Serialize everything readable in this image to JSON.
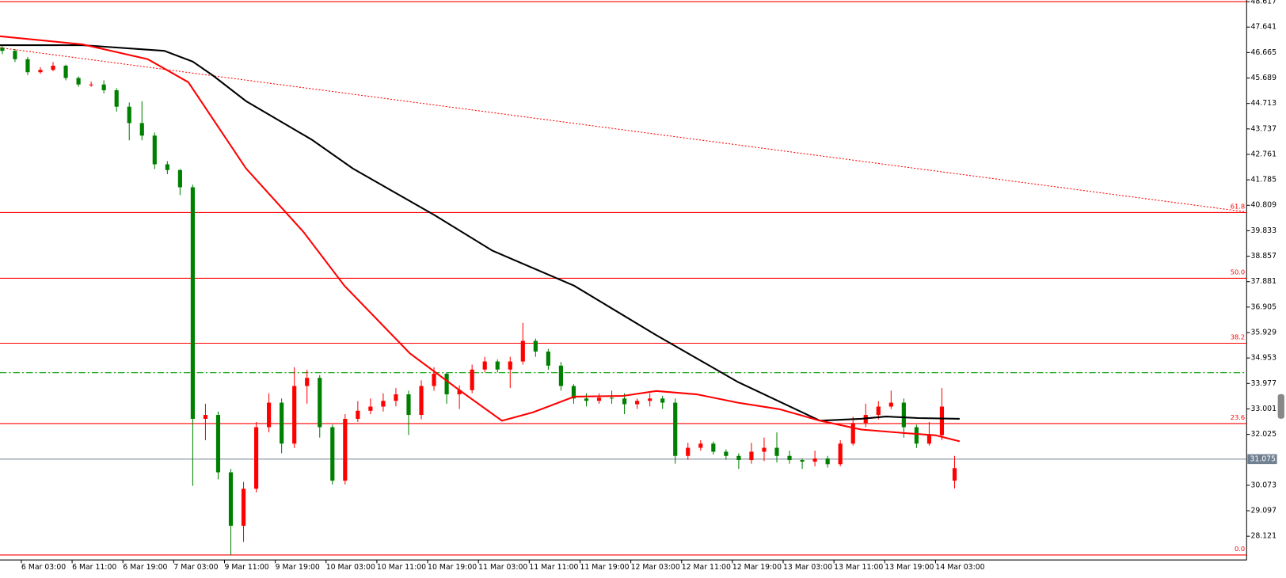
{
  "chart_data": {
    "type": "candlestick",
    "up_color": "#ff0000",
    "down_color": "#008000",
    "xlim": [
      2.64,
      199
    ],
    "ylim": [
      27.21,
      48.68
    ],
    "xticks": [
      {
        "value": 6,
        "label": "6 Mar 03:00"
      },
      {
        "value": 14,
        "label": "6 Mar 11:00"
      },
      {
        "value": 22,
        "label": "6 Mar 19:00"
      },
      {
        "value": 30,
        "label": "7 Mar 03:00"
      },
      {
        "value": 38,
        "label": "9 Mar 11:00"
      },
      {
        "value": 46,
        "label": "9 Mar 19:00"
      },
      {
        "value": 54,
        "label": "10 Mar 03:00"
      },
      {
        "value": 62,
        "label": "10 Mar 11:00"
      },
      {
        "value": 70,
        "label": "10 Mar 19:00"
      },
      {
        "value": 78,
        "label": "11 Mar 03:00"
      },
      {
        "value": 86,
        "label": "11 Mar 11:00"
      },
      {
        "value": 94,
        "label": "11 Mar 19:00"
      },
      {
        "value": 102,
        "label": "12 Mar 03:00"
      },
      {
        "value": 110,
        "label": "12 Mar 11:00"
      },
      {
        "value": 118,
        "label": "12 Mar 19:00"
      },
      {
        "value": 126,
        "label": "13 Mar 03:00"
      },
      {
        "value": 134,
        "label": "13 Mar 11:00"
      },
      {
        "value": 142,
        "label": "13 Mar 19:00"
      },
      {
        "value": 150,
        "label": "14 Mar 03:00"
      }
    ],
    "yticks": [
      48.617,
      47.641,
      46.665,
      45.689,
      44.713,
      43.737,
      42.761,
      41.785,
      40.809,
      39.833,
      38.857,
      37.881,
      36.905,
      35.929,
      34.953,
      33.977,
      33.001,
      32.025,
      30.073,
      29.097,
      28.121
    ],
    "candles": [
      {
        "x": 3,
        "open": 46.85,
        "close": 46.73,
        "high": 46.95,
        "low": 46.6
      },
      {
        "x": 5,
        "open": 46.73,
        "close": 46.41,
        "high": 46.8,
        "low": 46.3
      },
      {
        "x": 7,
        "open": 46.41,
        "close": 45.91,
        "high": 46.5,
        "low": 45.8
      },
      {
        "x": 9,
        "open": 45.91,
        "close": 46.0,
        "high": 46.1,
        "low": 45.85
      },
      {
        "x": 11,
        "open": 46.0,
        "close": 46.16,
        "high": 46.3,
        "low": 45.95
      },
      {
        "x": 13,
        "open": 46.16,
        "close": 45.69,
        "high": 46.2,
        "low": 45.6
      },
      {
        "x": 15,
        "open": 45.69,
        "close": 45.44,
        "high": 45.75,
        "low": 45.35
      },
      {
        "x": 17,
        "open": 45.44,
        "close": 45.44,
        "high": 45.55,
        "low": 45.35
      },
      {
        "x": 19,
        "open": 45.44,
        "close": 45.22,
        "high": 45.6,
        "low": 45.1
      },
      {
        "x": 21,
        "open": 45.22,
        "close": 44.59,
        "high": 45.3,
        "low": 44.4
      },
      {
        "x": 23,
        "open": 44.59,
        "close": 43.96,
        "high": 44.75,
        "low": 43.3
      },
      {
        "x": 25,
        "open": 43.96,
        "close": 43.48,
        "high": 44.8,
        "low": 43.3
      },
      {
        "x": 27,
        "open": 43.48,
        "close": 42.38,
        "high": 43.6,
        "low": 42.2
      },
      {
        "x": 29,
        "open": 42.38,
        "close": 42.16,
        "high": 42.5,
        "low": 42.0
      },
      {
        "x": 31,
        "open": 42.16,
        "close": 41.5,
        "high": 42.2,
        "low": 41.2
      },
      {
        "x": 33,
        "open": 41.5,
        "close": 32.62,
        "high": 41.6,
        "low": 30.05
      },
      {
        "x": 35,
        "open": 32.62,
        "close": 32.77,
        "high": 33.2,
        "low": 31.8
      },
      {
        "x": 37,
        "open": 32.77,
        "close": 30.57,
        "high": 32.9,
        "low": 30.3
      },
      {
        "x": 39,
        "open": 30.57,
        "close": 28.52,
        "high": 30.7,
        "low": 27.4
      },
      {
        "x": 41,
        "open": 28.52,
        "close": 29.94,
        "high": 30.2,
        "low": 27.9
      },
      {
        "x": 43,
        "open": 29.94,
        "close": 32.3,
        "high": 32.5,
        "low": 29.8
      },
      {
        "x": 45,
        "open": 32.3,
        "close": 33.24,
        "high": 33.6,
        "low": 32.1
      },
      {
        "x": 47,
        "open": 33.24,
        "close": 31.67,
        "high": 33.4,
        "low": 31.3
      },
      {
        "x": 49,
        "open": 31.67,
        "close": 33.88,
        "high": 34.6,
        "low": 31.5
      },
      {
        "x": 51,
        "open": 33.88,
        "close": 34.19,
        "high": 34.5,
        "low": 33.2
      },
      {
        "x": 53,
        "open": 34.19,
        "close": 32.3,
        "high": 34.3,
        "low": 31.9
      },
      {
        "x": 55,
        "open": 32.3,
        "close": 30.25,
        "high": 32.4,
        "low": 30.1
      },
      {
        "x": 57,
        "open": 30.25,
        "close": 32.62,
        "high": 32.8,
        "low": 30.1
      },
      {
        "x": 59,
        "open": 32.62,
        "close": 32.93,
        "high": 33.3,
        "low": 32.5
      },
      {
        "x": 61,
        "open": 32.93,
        "close": 33.09,
        "high": 33.4,
        "low": 32.8
      },
      {
        "x": 63,
        "open": 33.09,
        "close": 33.31,
        "high": 33.6,
        "low": 32.9
      },
      {
        "x": 65,
        "open": 33.31,
        "close": 33.56,
        "high": 33.8,
        "low": 33.1
      },
      {
        "x": 67,
        "open": 33.56,
        "close": 32.77,
        "high": 33.7,
        "low": 32.0
      },
      {
        "x": 69,
        "open": 32.77,
        "close": 33.88,
        "high": 34.1,
        "low": 32.6
      },
      {
        "x": 71,
        "open": 33.88,
        "close": 34.35,
        "high": 34.6,
        "low": 33.7
      },
      {
        "x": 73,
        "open": 34.35,
        "close": 33.56,
        "high": 34.4,
        "low": 33.2
      },
      {
        "x": 75,
        "open": 33.56,
        "close": 33.72,
        "high": 33.9,
        "low": 33.0
      },
      {
        "x": 77,
        "open": 33.72,
        "close": 34.51,
        "high": 34.7,
        "low": 33.6
      },
      {
        "x": 79,
        "open": 34.51,
        "close": 34.82,
        "high": 35.0,
        "low": 34.4
      },
      {
        "x": 81,
        "open": 34.82,
        "close": 34.51,
        "high": 34.9,
        "low": 34.4
      },
      {
        "x": 83,
        "open": 34.51,
        "close": 34.82,
        "high": 35.0,
        "low": 33.8
      },
      {
        "x": 85,
        "open": 34.82,
        "close": 35.61,
        "high": 36.3,
        "low": 34.7
      },
      {
        "x": 87,
        "open": 35.61,
        "close": 35.2,
        "high": 35.7,
        "low": 35.0
      },
      {
        "x": 89,
        "open": 35.2,
        "close": 34.66,
        "high": 35.3,
        "low": 34.5
      },
      {
        "x": 91,
        "open": 34.66,
        "close": 33.88,
        "high": 34.8,
        "low": 33.7
      },
      {
        "x": 93,
        "open": 33.88,
        "close": 33.4,
        "high": 33.95,
        "low": 33.2
      },
      {
        "x": 95,
        "open": 33.4,
        "close": 33.31,
        "high": 33.6,
        "low": 33.1
      },
      {
        "x": 97,
        "open": 33.31,
        "close": 33.43,
        "high": 33.6,
        "low": 33.2
      },
      {
        "x": 99,
        "open": 33.43,
        "close": 33.4,
        "high": 33.7,
        "low": 33.2
      },
      {
        "x": 101,
        "open": 33.4,
        "close": 33.18,
        "high": 33.6,
        "low": 32.8
      },
      {
        "x": 103,
        "open": 33.18,
        "close": 33.31,
        "high": 33.4,
        "low": 33.0
      },
      {
        "x": 105,
        "open": 33.31,
        "close": 33.4,
        "high": 33.6,
        "low": 33.1
      },
      {
        "x": 107,
        "open": 33.4,
        "close": 33.24,
        "high": 33.5,
        "low": 33.0
      },
      {
        "x": 109,
        "open": 33.24,
        "close": 31.2,
        "high": 33.4,
        "low": 30.9
      },
      {
        "x": 111,
        "open": 31.2,
        "close": 31.51,
        "high": 31.7,
        "low": 31.05
      },
      {
        "x": 113,
        "open": 31.51,
        "close": 31.67,
        "high": 31.8,
        "low": 31.4
      },
      {
        "x": 115,
        "open": 31.67,
        "close": 31.36,
        "high": 31.75,
        "low": 31.25
      },
      {
        "x": 117,
        "open": 31.36,
        "close": 31.2,
        "high": 31.45,
        "low": 31.05
      },
      {
        "x": 119,
        "open": 31.2,
        "close": 31.04,
        "high": 31.3,
        "low": 30.7
      },
      {
        "x": 121,
        "open": 31.04,
        "close": 31.36,
        "high": 31.7,
        "low": 30.9
      },
      {
        "x": 123,
        "open": 31.36,
        "close": 31.51,
        "high": 31.9,
        "low": 31.0
      },
      {
        "x": 125,
        "open": 31.51,
        "close": 31.2,
        "high": 32.1,
        "low": 30.95
      },
      {
        "x": 127,
        "open": 31.2,
        "close": 31.04,
        "high": 31.4,
        "low": 30.9
      },
      {
        "x": 129,
        "open": 31.04,
        "close": 30.98,
        "high": 31.1,
        "low": 30.7
      },
      {
        "x": 131,
        "open": 30.98,
        "close": 31.1,
        "high": 31.4,
        "low": 30.8
      },
      {
        "x": 133,
        "open": 31.1,
        "close": 30.88,
        "high": 31.2,
        "low": 30.75
      },
      {
        "x": 135,
        "open": 30.88,
        "close": 31.67,
        "high": 31.8,
        "low": 30.8
      },
      {
        "x": 137,
        "open": 31.67,
        "close": 32.46,
        "high": 32.7,
        "low": 31.6
      },
      {
        "x": 139,
        "open": 32.46,
        "close": 32.77,
        "high": 33.2,
        "low": 32.3
      },
      {
        "x": 141,
        "open": 32.77,
        "close": 33.09,
        "high": 33.3,
        "low": 32.6
      },
      {
        "x": 143,
        "open": 33.09,
        "close": 33.24,
        "high": 33.7,
        "low": 33.0
      },
      {
        "x": 145,
        "open": 33.24,
        "close": 32.3,
        "high": 33.4,
        "low": 31.9
      },
      {
        "x": 147,
        "open": 32.3,
        "close": 31.67,
        "high": 32.4,
        "low": 31.5
      },
      {
        "x": 149,
        "open": 31.67,
        "close": 31.99,
        "high": 32.5,
        "low": 31.6
      },
      {
        "x": 151,
        "open": 31.99,
        "close": 33.09,
        "high": 33.8,
        "low": 31.8
      },
      {
        "x": 153,
        "open": 30.25,
        "close": 30.73,
        "high": 31.2,
        "low": 29.95
      }
    ],
    "moving_averages": [
      {
        "color": "#000000",
        "x": [
          2.64,
          15.6,
          28.5,
          33.0,
          36.2,
          41.4,
          51.7,
          58.2,
          71.1,
          80.2,
          93.1,
          106,
          118.9,
          131.8,
          138.3,
          142.2,
          147.3,
          153.8
        ],
        "values": [
          46.95,
          46.95,
          46.73,
          46.32,
          45.78,
          44.8,
          43.33,
          42.22,
          40.43,
          39.07,
          37.72,
          35.83,
          34.03,
          32.55,
          32.62,
          32.71,
          32.65,
          32.62
        ]
      },
      {
        "color": "#ff0000",
        "x": [
          2.64,
          15.6,
          25.9,
          32.3,
          36.2,
          41.4,
          50.4,
          56.9,
          67.2,
          75.0,
          81.7,
          86.6,
          93.1,
          100.8,
          106,
          112.4,
          118.9,
          125.4,
          131.8,
          138.3,
          144.8,
          150,
          153.8
        ],
        "values": [
          47.29,
          46.98,
          46.41,
          45.53,
          44.11,
          42.22,
          39.8,
          37.72,
          35.13,
          33.72,
          32.55,
          32.87,
          33.47,
          33.5,
          33.69,
          33.56,
          33.24,
          32.99,
          32.55,
          32.21,
          32.08,
          31.99,
          31.76
        ]
      }
    ],
    "trendline": {
      "color": "#ff0000",
      "x": [
        2.64,
        198.7
      ],
      "values": [
        46.85,
        40.56
      ]
    },
    "fib_levels": [
      {
        "label": "61.8",
        "price": 40.53
      },
      {
        "label": "50.0",
        "price": 38.01
      },
      {
        "label": "38.2",
        "price": 35.52
      },
      {
        "label": "23.6",
        "price": 32.44
      },
      {
        "label": "0.0",
        "price": 27.4
      }
    ],
    "fib_color": "#ff0000",
    "top_line": 48.617,
    "level_line": {
      "price": 34.39,
      "color": "#00a000"
    },
    "bid_line": {
      "price": 31.075,
      "color": "#708090"
    }
  }
}
